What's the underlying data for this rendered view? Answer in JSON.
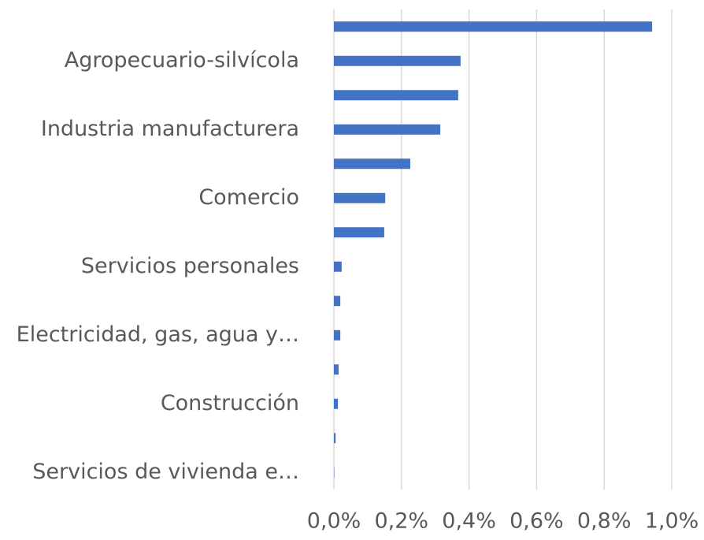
{
  "chart_data": {
    "type": "barh",
    "categories": [
      null,
      "Agropecuario-silvícola",
      null,
      "Industria manufacturera",
      null,
      "Comercio",
      null,
      "Servicios personales",
      null,
      "Electricidad, gas, agua y…",
      null,
      "Construcción",
      null,
      "Servicios de vivienda e…"
    ],
    "values": [
      0.942,
      0.375,
      0.368,
      0.315,
      0.226,
      0.152,
      0.149,
      0.023,
      0.019,
      0.019,
      0.014,
      0.012,
      0.005,
      0.001
    ],
    "color": "#4472c4",
    "xlim": [
      0,
      1.0
    ],
    "xticks": [
      {
        "value": 0,
        "label": "0,0%"
      },
      {
        "value": 0.2,
        "label": "0,2%"
      },
      {
        "value": 0.4,
        "label": "0,4%"
      },
      {
        "value": 0.6,
        "label": "0,6%"
      },
      {
        "value": 0.8,
        "label": "0,8%"
      },
      {
        "value": 1.0,
        "label": "1,0%"
      }
    ],
    "grid": true
  }
}
